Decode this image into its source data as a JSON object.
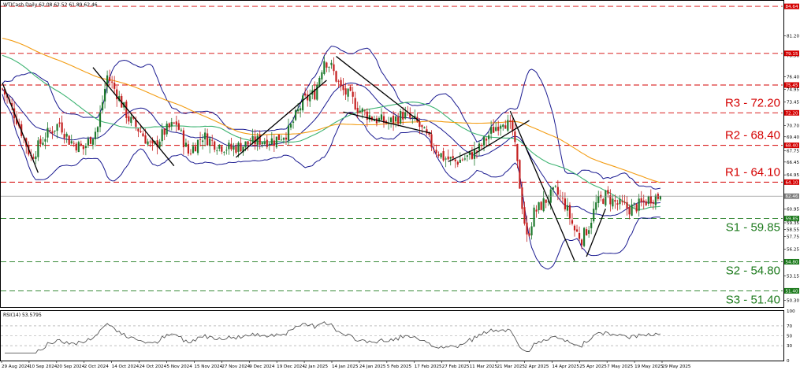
{
  "header": {
    "symbol_info": "WTICash,Daily  62.08 62.52 61.89 62.46",
    "rsi_label": "RSI(14) 53.5795"
  },
  "colors": {
    "resistance": "#d40000",
    "support": "#1c7a1c",
    "candle_up": "#1f7a2e",
    "candle_down": "#c41e1e",
    "bollinger": "#1a1a90",
    "ma_green": "#3cb371",
    "ma_orange": "#f39c12",
    "trendline": "#000000",
    "rsi": "#555555",
    "current_price": "#808080"
  },
  "chart_data": [
    {
      "type": "candlestick",
      "title": "",
      "instrument": "WTICash",
      "timeframe": "Daily",
      "ohlc_last": {
        "open": 62.08,
        "high": 62.52,
        "low": 61.89,
        "close": 62.46
      },
      "ylim": [
        49.6,
        85.2
      ],
      "y_ticks": [
        84.64,
        81.2,
        78.9,
        76.4,
        74.95,
        73.45,
        70.7,
        69.4,
        67.75,
        66.45,
        64.95,
        62.46,
        60.95,
        59.35,
        58.55,
        57.75,
        56.25,
        54.8,
        53.15,
        51.4,
        50.3
      ],
      "x_ticks": [
        "29 Aug 2024",
        "10 Sep 2024",
        "20 Sep 2024",
        "2 Oct 2024",
        "14 Oct 2024",
        "24 Oct 2024",
        "5 Nov 2024",
        "15 Nov 2024",
        "27 Nov 2024",
        "9 Dec 2024",
        "19 Dec 2024",
        "2 Jan 2025",
        "14 Jan 2025",
        "24 Jan 2025",
        "5 Feb 2025",
        "17 Feb 2025",
        "27 Feb 2025",
        "11 Mar 2025",
        "21 Mar 2025",
        "2 Apr 2025",
        "14 Apr 2025",
        "25 Apr 2025",
        "7 May 2025",
        "19 May 2025",
        "29 May 2025"
      ],
      "price_tags": [
        {
          "value": 84.64,
          "label": "84.64",
          "color": "#d40000"
        },
        {
          "value": 79.15,
          "label": "79.15",
          "color": "#d40000"
        },
        {
          "value": 75.45,
          "label": "75.45",
          "color": "#d40000"
        },
        {
          "value": 72.2,
          "label": "72.20",
          "color": "#d40000"
        },
        {
          "value": 68.4,
          "label": "68.40",
          "color": "#d40000"
        },
        {
          "value": 64.1,
          "label": "64.10",
          "color": "#d40000"
        },
        {
          "value": 62.46,
          "label": "62.46",
          "color": "#808080"
        },
        {
          "value": 59.85,
          "label": "59.85",
          "color": "#1c7a1c"
        },
        {
          "value": 54.8,
          "label": "54.80",
          "color": "#1c7a1c"
        },
        {
          "value": 51.4,
          "label": "51.40",
          "color": "#1c7a1c"
        }
      ],
      "levels": [
        {
          "name": "R3",
          "value": 72.2,
          "label": "R3 - 72.20",
          "kind": "resistance"
        },
        {
          "name": "R2",
          "value": 68.4,
          "label": "R2 - 68.40",
          "kind": "resistance"
        },
        {
          "name": "R1",
          "value": 64.1,
          "label": "R1 - 64.10",
          "kind": "resistance"
        },
        {
          "name": "S1",
          "value": 59.85,
          "label": "S1 - 59.85",
          "kind": "support"
        },
        {
          "name": "S2",
          "value": 54.8,
          "label": "S2 - 54.80",
          "kind": "support"
        },
        {
          "name": "S3",
          "value": 51.4,
          "label": "S3 - 51.40",
          "kind": "support"
        }
      ],
      "unlabeled_dashed_levels": [
        84.64,
        79.15,
        75.45
      ],
      "close_path": [
        {
          "d": 0,
          "c": 75.0
        },
        {
          "d": 6,
          "c": 71.5
        },
        {
          "d": 12,
          "c": 67.0
        },
        {
          "d": 18,
          "c": 69.5
        },
        {
          "d": 24,
          "c": 71.0
        },
        {
          "d": 28,
          "c": 69.0
        },
        {
          "d": 34,
          "c": 68.0
        },
        {
          "d": 40,
          "c": 70.5
        },
        {
          "d": 44,
          "c": 76.5
        },
        {
          "d": 48,
          "c": 74.5
        },
        {
          "d": 53,
          "c": 71.5
        },
        {
          "d": 58,
          "c": 70.0
        },
        {
          "d": 63,
          "c": 68.0
        },
        {
          "d": 68,
          "c": 70.0
        },
        {
          "d": 73,
          "c": 71.0
        },
        {
          "d": 78,
          "c": 67.5
        },
        {
          "d": 84,
          "c": 69.5
        },
        {
          "d": 90,
          "c": 68.5
        },
        {
          "d": 96,
          "c": 68.0
        },
        {
          "d": 102,
          "c": 68.5
        },
        {
          "d": 108,
          "c": 69.0
        },
        {
          "d": 114,
          "c": 69.0
        },
        {
          "d": 120,
          "c": 70.0
        },
        {
          "d": 126,
          "c": 73.5
        },
        {
          "d": 131,
          "c": 74.5
        },
        {
          "d": 135,
          "c": 78.5
        },
        {
          "d": 138,
          "c": 77.5
        },
        {
          "d": 142,
          "c": 75.0
        },
        {
          "d": 146,
          "c": 74.0
        },
        {
          "d": 150,
          "c": 72.5
        },
        {
          "d": 156,
          "c": 71.5
        },
        {
          "d": 162,
          "c": 71.0
        },
        {
          "d": 168,
          "c": 72.0
        },
        {
          "d": 174,
          "c": 71.0
        },
        {
          "d": 180,
          "c": 68.5
        },
        {
          "d": 185,
          "c": 67.0
        },
        {
          "d": 190,
          "c": 66.5
        },
        {
          "d": 195,
          "c": 67.0
        },
        {
          "d": 200,
          "c": 68.0
        },
        {
          "d": 205,
          "c": 70.0
        },
        {
          "d": 210,
          "c": 71.5
        },
        {
          "d": 214,
          "c": 70.0
        },
        {
          "d": 216,
          "c": 66.0
        },
        {
          "d": 218,
          "c": 61.5
        },
        {
          "d": 220,
          "c": 57.5
        },
        {
          "d": 223,
          "c": 60.5
        },
        {
          "d": 228,
          "c": 62.0
        },
        {
          "d": 232,
          "c": 63.0
        },
        {
          "d": 236,
          "c": 61.5
        },
        {
          "d": 240,
          "c": 58.5
        },
        {
          "d": 243,
          "c": 57.5
        },
        {
          "d": 246,
          "c": 59.0
        },
        {
          "d": 249,
          "c": 61.5
        },
        {
          "d": 253,
          "c": 62.5
        },
        {
          "d": 258,
          "c": 61.5
        },
        {
          "d": 263,
          "c": 61.0
        },
        {
          "d": 268,
          "c": 61.5
        },
        {
          "d": 272,
          "c": 62.3
        },
        {
          "d": 276,
          "c": 62.46
        }
      ],
      "rsi": {
        "name": "RSI(14)",
        "last": 53.5795,
        "ylim": [
          0,
          100
        ],
        "levels": [
          70,
          50,
          30
        ],
        "y_ticks": [
          100,
          70,
          50,
          30,
          0
        ]
      }
    }
  ]
}
